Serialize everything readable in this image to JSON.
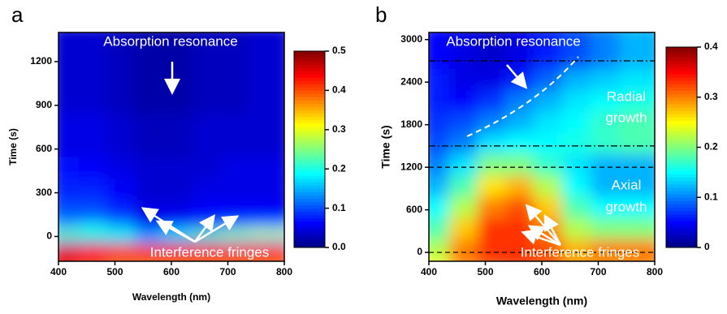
{
  "chart_data": [
    {
      "type": "heatmap",
      "panel": "a",
      "xlabel": "Wavelength (nm)",
      "ylabel": "Time (s)",
      "xlim": [
        400,
        800
      ],
      "xticks": [
        400,
        500,
        600,
        700,
        800
      ],
      "ylim": [
        -170,
        1400
      ],
      "yticks": [
        0,
        300,
        600,
        900,
        1200
      ],
      "colormap": "jet",
      "zlim": [
        0,
        0.5
      ],
      "zticks": [
        {
          "value": 0,
          "label": "0.0"
        },
        0.1,
        0.2,
        0.3,
        0.4,
        0.5
      ],
      "xbins": [
        400,
        450,
        500,
        550,
        600,
        650,
        700,
        750,
        800
      ],
      "ybins": [
        -170,
        0,
        50,
        100,
        150,
        200,
        300,
        450,
        600,
        900,
        1400
      ],
      "z": [
        [
          0.45,
          0.42,
          0.4,
          0.4,
          0.4,
          0.4,
          0.4,
          0.4
        ],
        [
          0.15,
          0.15,
          0.15,
          0.12,
          0.12,
          0.14,
          0.15,
          0.15
        ],
        [
          0.25,
          0.22,
          0.2,
          0.15,
          0.2,
          0.25,
          0.28,
          0.3
        ],
        [
          0.15,
          0.18,
          0.15,
          0.08,
          0.1,
          0.12,
          0.14,
          0.15
        ],
        [
          0.12,
          0.12,
          0.1,
          0.05,
          0.06,
          0.07,
          0.08,
          0.08
        ],
        [
          0.1,
          0.1,
          0.08,
          0.05,
          0.05,
          0.06,
          0.06,
          0.06
        ],
        [
          0.08,
          0.08,
          0.06,
          0.04,
          0.04,
          0.05,
          0.05,
          0.05
        ],
        [
          0.07,
          0.06,
          0.05,
          0.04,
          0.04,
          0.04,
          0.05,
          0.05
        ],
        [
          0.05,
          0.05,
          0.04,
          0.03,
          0.03,
          0.04,
          0.04,
          0.04
        ],
        [
          0.04,
          0.04,
          0.03,
          0.02,
          0.02,
          0.03,
          0.03,
          0.04
        ]
      ],
      "annotations": [
        "Absorption resonance",
        "Interference fringes"
      ]
    },
    {
      "type": "heatmap",
      "panel": "b",
      "xlabel": "Wavelength (nm)",
      "ylabel": "Time (s)",
      "xlim": [
        400,
        800
      ],
      "xticks": [
        400,
        500,
        600,
        700,
        800
      ],
      "ylim": [
        -125,
        3100
      ],
      "yticks": [
        0,
        600,
        1200,
        1800,
        2400,
        3000
      ],
      "colormap": "jet",
      "zlim": [
        0,
        0.4
      ],
      "zticks": [
        0,
        0.1,
        0.2,
        0.3,
        0.4
      ],
      "xbins": [
        400,
        450,
        500,
        550,
        600,
        650,
        700,
        750,
        800
      ],
      "ybins": [
        -125,
        0,
        300,
        600,
        900,
        1200,
        1500,
        1800,
        2100,
        2400,
        2700,
        3100
      ],
      "z": [
        [
          0.25,
          0.3,
          0.32,
          0.33,
          0.32,
          0.3,
          0.3,
          0.3
        ],
        [
          0.22,
          0.3,
          0.33,
          0.33,
          0.32,
          0.28,
          0.3,
          0.3
        ],
        [
          0.18,
          0.27,
          0.33,
          0.33,
          0.3,
          0.22,
          0.2,
          0.2
        ],
        [
          0.15,
          0.22,
          0.3,
          0.32,
          0.27,
          0.18,
          0.15,
          0.15
        ],
        [
          0.12,
          0.18,
          0.26,
          0.28,
          0.22,
          0.15,
          0.12,
          0.12
        ],
        [
          0.1,
          0.14,
          0.2,
          0.2,
          0.17,
          0.14,
          0.12,
          0.12
        ],
        [
          0.08,
          0.1,
          0.14,
          0.15,
          0.15,
          0.16,
          0.17,
          0.18
        ],
        [
          0.07,
          0.08,
          0.1,
          0.12,
          0.14,
          0.15,
          0.17,
          0.18
        ],
        [
          0.06,
          0.05,
          0.07,
          0.1,
          0.12,
          0.14,
          0.15,
          0.16
        ],
        [
          0.06,
          0.04,
          0.04,
          0.06,
          0.09,
          0.12,
          0.13,
          0.14
        ],
        [
          0.05,
          0.04,
          0.03,
          0.04,
          0.06,
          0.08,
          0.1,
          0.12
        ]
      ],
      "hlines": [
        {
          "value": 0,
          "style": "dashed"
        },
        {
          "value": 1200,
          "style": "dashed"
        },
        {
          "value": 1500,
          "style": "dashdot"
        },
        {
          "value": 2700,
          "style": "dashdot"
        }
      ],
      "annotations": [
        "Absorption resonance",
        "Interference fringes",
        "Radial",
        "growth",
        "Axial",
        "growth"
      ]
    }
  ]
}
